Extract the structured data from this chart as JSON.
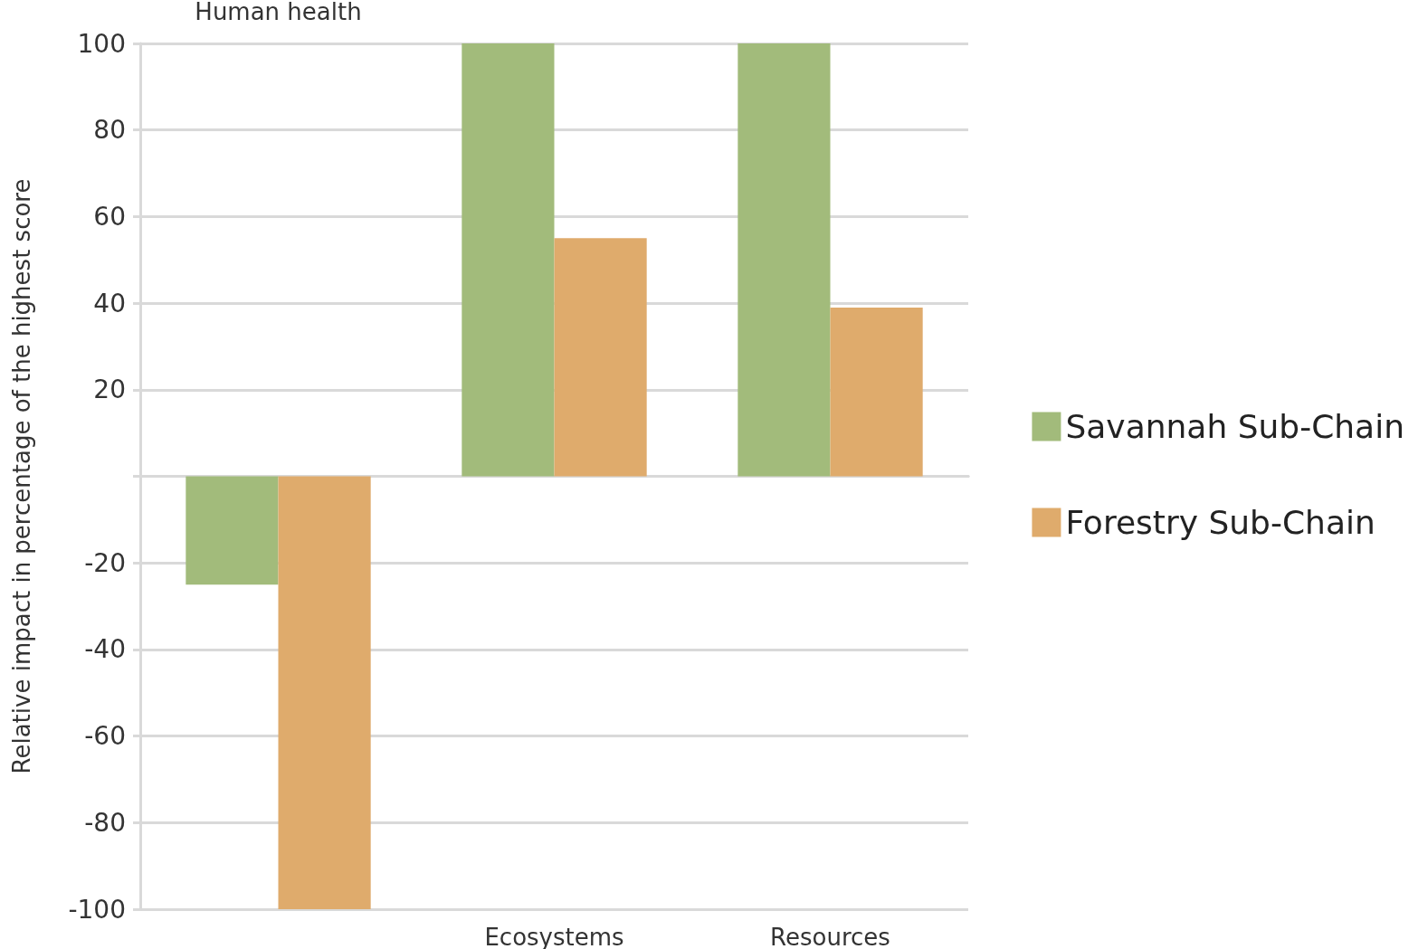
{
  "chart_data": {
    "type": "bar",
    "ylabel": "Relative impact in percentage of the highest score",
    "categories": [
      "Human health",
      "Ecosystems",
      "Resources"
    ],
    "series": [
      {
        "name": "Savannah Sub-Chain",
        "color": "#a2bb7b",
        "values": [
          -25,
          100,
          100
        ]
      },
      {
        "name": "Forestry Sub-Chain",
        "color": "#dfab6c",
        "values": [
          -100,
          55,
          39
        ]
      }
    ],
    "ylim": [
      -100,
      100
    ],
    "yticks": [
      -100,
      -80,
      -60,
      -40,
      -20,
      {
        "value": 0,
        "label": null
      },
      20,
      40,
      60,
      80,
      100
    ],
    "grid": "y",
    "legend": "right"
  }
}
